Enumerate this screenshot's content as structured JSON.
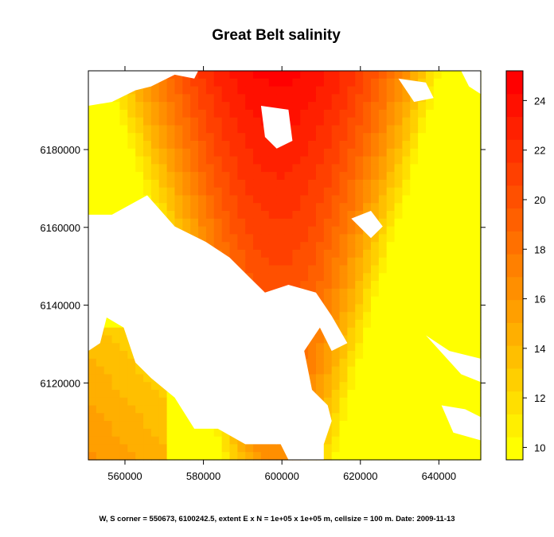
{
  "chart_data": {
    "type": "heatmap",
    "title": "Great Belt salinity",
    "xlabel": "",
    "ylabel": "",
    "xlim": [
      550673,
      650673
    ],
    "ylim": [
      6100242.5,
      6200242.5
    ],
    "x_ticks": [
      560000,
      580000,
      600000,
      620000,
      640000
    ],
    "x_tick_labels": [
      "560000",
      "580000",
      "600000",
      "620000",
      "640000"
    ],
    "y_ticks": [
      6120000,
      6140000,
      6160000,
      6180000
    ],
    "y_tick_labels": [
      "6120000",
      "6140000",
      "6160000",
      "6180000"
    ],
    "colorbar": {
      "min": 9.5,
      "max": 25.2,
      "levels": 17,
      "ticks": [
        10,
        12,
        14,
        16,
        18,
        20,
        22,
        24
      ],
      "tick_labels": [
        "10",
        "12",
        "14",
        "16",
        "18",
        "20",
        "22",
        "24"
      ],
      "color_low": "#ffff00",
      "color_high": "#ff0000"
    },
    "grid": false,
    "footnote": "W, S corner = 550673, 6100242.5, extent E x N = 1e+05 x 1e+05 m, cellsize = 100 m. Date: 2009-11-13"
  }
}
